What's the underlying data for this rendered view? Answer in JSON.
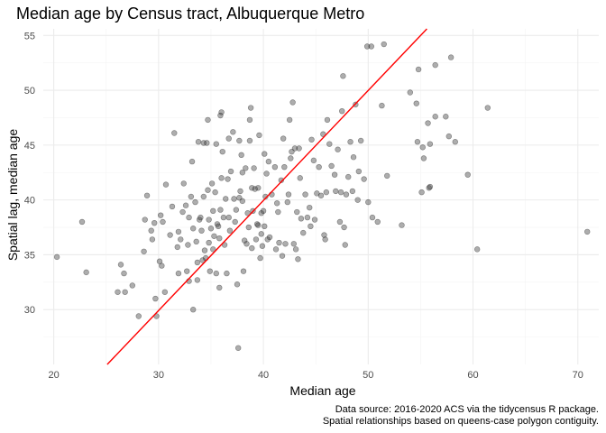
{
  "chart_data": {
    "type": "scatter",
    "title": "Median age by Census tract, Albuquerque Metro",
    "xlabel": "Median age",
    "ylabel": "Spatial lag, median age",
    "caption": [
      "Data source: 2016-2020 ACS via the tidycensus R package.",
      "Spatial relationships based on queens-case polygon contiguity."
    ],
    "xlim": [
      19,
      72
    ],
    "ylim": [
      25,
      55.6
    ],
    "x_ticks": [
      20,
      30,
      40,
      50,
      60,
      70
    ],
    "y_ticks": [
      30,
      35,
      40,
      45,
      50,
      55
    ],
    "grid": true,
    "point_color": "#333333",
    "point_opacity": 0.4,
    "line": {
      "color": "#ff0000",
      "x": [
        25.1,
        55.6
      ],
      "y": [
        25.0,
        55.6
      ]
    },
    "points": [
      [
        20.3,
        34.8
      ],
      [
        22.7,
        38.0
      ],
      [
        23.1,
        33.4
      ],
      [
        26.1,
        31.6
      ],
      [
        26.4,
        34.1
      ],
      [
        26.7,
        33.3
      ],
      [
        26.8,
        31.6
      ],
      [
        27.5,
        32.2
      ],
      [
        28.1,
        29.4
      ],
      [
        28.6,
        35.3
      ],
      [
        28.7,
        38.2
      ],
      [
        28.9,
        40.4
      ],
      [
        29.3,
        37.2
      ],
      [
        29.4,
        36.4
      ],
      [
        29.6,
        37.9
      ],
      [
        29.8,
        29.4
      ],
      [
        29.7,
        31.0
      ],
      [
        30.1,
        34.4
      ],
      [
        30.2,
        38.6
      ],
      [
        30.3,
        34.0
      ],
      [
        30.4,
        38.0
      ],
      [
        30.6,
        31.6
      ],
      [
        30.7,
        41.4
      ],
      [
        31.1,
        36.8
      ],
      [
        31.3,
        39.4
      ],
      [
        31.5,
        46.1
      ],
      [
        31.8,
        35.7
      ],
      [
        31.9,
        37.1
      ],
      [
        31.9,
        33.3
      ],
      [
        32.1,
        36.4
      ],
      [
        32.3,
        38.9
      ],
      [
        32.4,
        41.5
      ],
      [
        32.6,
        39.5
      ],
      [
        32.7,
        33.5
      ],
      [
        32.8,
        35.9
      ],
      [
        32.9,
        32.6
      ],
      [
        32.9,
        38.4
      ],
      [
        33.1,
        40.3
      ],
      [
        33.2,
        43.5
      ],
      [
        33.3,
        30.0
      ],
      [
        33.3,
        37.4
      ],
      [
        33.5,
        39.8
      ],
      [
        33.6,
        36.2
      ],
      [
        33.7,
        32.7
      ],
      [
        33.7,
        34.3
      ],
      [
        33.8,
        45.3
      ],
      [
        33.9,
        38.2
      ],
      [
        34.0,
        38.4
      ],
      [
        34.1,
        37.2
      ],
      [
        34.2,
        34.5
      ],
      [
        34.3,
        40.3
      ],
      [
        34.3,
        45.2
      ],
      [
        34.4,
        35.4
      ],
      [
        34.5,
        34.7
      ],
      [
        34.6,
        45.2
      ],
      [
        34.7,
        40.9
      ],
      [
        34.7,
        47.3
      ],
      [
        34.8,
        38.2
      ],
      [
        34.8,
        36.1
      ],
      [
        34.9,
        33.5
      ],
      [
        35.0,
        37.4
      ],
      [
        35.1,
        41.5
      ],
      [
        35.2,
        39.0
      ],
      [
        35.2,
        35.5
      ],
      [
        35.3,
        36.7
      ],
      [
        35.4,
        40.7
      ],
      [
        35.5,
        33.3
      ],
      [
        35.5,
        45.1
      ],
      [
        35.6,
        37.8
      ],
      [
        35.7,
        37.6
      ],
      [
        35.8,
        32.0
      ],
      [
        35.8,
        36.5
      ],
      [
        35.9,
        39.1
      ],
      [
        35.9,
        47.7
      ],
      [
        36.0,
        42.0
      ],
      [
        36.0,
        48.0
      ],
      [
        36.1,
        44.4
      ],
      [
        36.2,
        38.4
      ],
      [
        36.3,
        35.9
      ],
      [
        36.4,
        40.1
      ],
      [
        36.5,
        33.3
      ],
      [
        36.6,
        41.9
      ],
      [
        36.7,
        38.4
      ],
      [
        36.7,
        45.6
      ],
      [
        36.8,
        37.2
      ],
      [
        36.9,
        42.6
      ],
      [
        37.1,
        46.2
      ],
      [
        37.2,
        40.1
      ],
      [
        37.3,
        38.0
      ],
      [
        37.4,
        39.1
      ],
      [
        37.5,
        32.3
      ],
      [
        37.6,
        26.5
      ],
      [
        37.7,
        40.2
      ],
      [
        37.7,
        45.4
      ],
      [
        37.8,
        40.8
      ],
      [
        37.9,
        44.1
      ],
      [
        38.0,
        39.9
      ],
      [
        38.0,
        42.5
      ],
      [
        38.1,
        33.5
      ],
      [
        38.2,
        36.3
      ],
      [
        38.3,
        42.9
      ],
      [
        38.4,
        36.0
      ],
      [
        38.5,
        38.8
      ],
      [
        38.6,
        37.5
      ],
      [
        38.7,
        47.3
      ],
      [
        38.7,
        45.4
      ],
      [
        38.8,
        48.4
      ],
      [
        38.9,
        35.6
      ],
      [
        38.9,
        41.1
      ],
      [
        39.0,
        39.0
      ],
      [
        39.1,
        42.9
      ],
      [
        39.2,
        41.0
      ],
      [
        39.3,
        36.4
      ],
      [
        39.4,
        37.8
      ],
      [
        39.5,
        41.1
      ],
      [
        39.5,
        37.7
      ],
      [
        39.6,
        45.9
      ],
      [
        39.7,
        34.7
      ],
      [
        39.8,
        36.9
      ],
      [
        39.8,
        38.8
      ],
      [
        39.9,
        35.8
      ],
      [
        40.0,
        39.0
      ],
      [
        40.1,
        44.2
      ],
      [
        40.1,
        37.6
      ],
      [
        40.2,
        40.3
      ],
      [
        40.3,
        42.4
      ],
      [
        40.4,
        36.4
      ],
      [
        40.5,
        43.5
      ],
      [
        40.6,
        36.6
      ],
      [
        40.8,
        40.5
      ],
      [
        41.1,
        43.0
      ],
      [
        41.2,
        35.5
      ],
      [
        41.3,
        39.7
      ],
      [
        41.4,
        38.9
      ],
      [
        41.5,
        36.1
      ],
      [
        41.7,
        41.8
      ],
      [
        41.8,
        34.9
      ],
      [
        41.9,
        45.6
      ],
      [
        42.0,
        43.0
      ],
      [
        42.1,
        36.0
      ],
      [
        42.3,
        39.8
      ],
      [
        42.4,
        40.5
      ],
      [
        42.5,
        47.3
      ],
      [
        42.6,
        43.8
      ],
      [
        42.7,
        44.4
      ],
      [
        42.8,
        48.9
      ],
      [
        42.9,
        36.0
      ],
      [
        43.0,
        44.7
      ],
      [
        43.1,
        35.5
      ],
      [
        43.2,
        38.9
      ],
      [
        43.3,
        34.6
      ],
      [
        43.4,
        44.7
      ],
      [
        43.5,
        42.0
      ],
      [
        43.6,
        38.3
      ],
      [
        43.8,
        37.0
      ],
      [
        44.0,
        40.5
      ],
      [
        44.2,
        38.4
      ],
      [
        44.4,
        39.3
      ],
      [
        44.5,
        37.6
      ],
      [
        44.6,
        45.5
      ],
      [
        44.8,
        43.6
      ],
      [
        44.9,
        38.2
      ],
      [
        45.1,
        40.6
      ],
      [
        45.3,
        43.0
      ],
      [
        45.5,
        40.4
      ],
      [
        45.7,
        46.0
      ],
      [
        45.8,
        36.8
      ],
      [
        45.9,
        36.4
      ],
      [
        46.0,
        40.7
      ],
      [
        46.1,
        47.3
      ],
      [
        46.3,
        45.1
      ],
      [
        46.5,
        43.1
      ],
      [
        46.8,
        42.3
      ],
      [
        46.9,
        40.8
      ],
      [
        47.1,
        44.6
      ],
      [
        47.3,
        38.0
      ],
      [
        47.4,
        40.7
      ],
      [
        47.5,
        48.1
      ],
      [
        47.6,
        51.3
      ],
      [
        47.7,
        37.5
      ],
      [
        47.8,
        35.9
      ],
      [
        47.9,
        40.5
      ],
      [
        48.1,
        42.1
      ],
      [
        48.3,
        45.3
      ],
      [
        48.5,
        40.8
      ],
      [
        48.6,
        43.9
      ],
      [
        48.8,
        48.7
      ],
      [
        49.0,
        40.0
      ],
      [
        49.1,
        42.6
      ],
      [
        49.3,
        45.4
      ],
      [
        49.6,
        41.9
      ],
      [
        49.9,
        54.0
      ],
      [
        50.0,
        39.8
      ],
      [
        50.3,
        54.0
      ],
      [
        50.4,
        38.4
      ],
      [
        50.9,
        38.0
      ],
      [
        51.3,
        48.6
      ],
      [
        51.5,
        54.2
      ],
      [
        51.8,
        42.2
      ],
      [
        53.2,
        37.7
      ],
      [
        54.0,
        49.8
      ],
      [
        54.6,
        48.8
      ],
      [
        54.7,
        45.3
      ],
      [
        54.8,
        51.9
      ],
      [
        55.1,
        40.7
      ],
      [
        55.2,
        44.8
      ],
      [
        55.3,
        43.8
      ],
      [
        55.7,
        47.0
      ],
      [
        55.8,
        41.1
      ],
      [
        55.9,
        41.2
      ],
      [
        55.9,
        45.1
      ],
      [
        56.4,
        47.6
      ],
      [
        56.4,
        52.3
      ],
      [
        57.4,
        47.6
      ],
      [
        57.7,
        45.8
      ],
      [
        57.9,
        53.0
      ],
      [
        58.3,
        45.3
      ],
      [
        59.5,
        42.3
      ],
      [
        60.4,
        35.5
      ],
      [
        61.4,
        48.4
      ],
      [
        70.9,
        37.1
      ]
    ]
  }
}
